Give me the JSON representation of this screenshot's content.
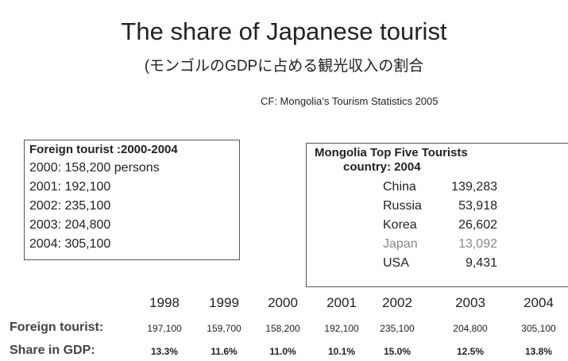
{
  "title": "The share of Japanese tourist",
  "subtitle": "(モンゴルのGDPに占める観光収入の割合",
  "source": "CF: Mongolia’s Tourism Statistics 2005",
  "left_box": {
    "title": "Foreign tourist :2000-2004",
    "lines": [
      "2000:  158,200 persons",
      "2001:  192,100",
      "2002:  235,100",
      "2003:  204,800",
      "2004:  305,100"
    ]
  },
  "right_box": {
    "title_lines": [
      "Mongolia Top Five Tourists",
      "country: 2004"
    ],
    "rows": [
      {
        "country": "China",
        "value": "139,283"
      },
      {
        "country": "Russia",
        "value": "53,918"
      },
      {
        "country": "Korea",
        "value": "26,602"
      },
      {
        "country": "Japan",
        "value": "13,092"
      },
      {
        "country": "USA",
        "value": "9,431"
      }
    ]
  },
  "table": {
    "years": [
      "1998",
      "1999",
      "2000",
      "2001",
      "2002",
      "2003",
      "2004"
    ],
    "rows": [
      {
        "label": "Foreign tourist:",
        "cells": [
          "197,100",
          "159,700",
          "158,200",
          "192,100",
          "235,100",
          "204,800",
          "305,100"
        ]
      },
      {
        "label": "Share in GDP:",
        "cells": [
          "13.3%",
          "11.6%",
          "11.0%",
          "10.1%",
          "15.0%",
          "12.5%",
          "13.8%"
        ]
      }
    ]
  }
}
